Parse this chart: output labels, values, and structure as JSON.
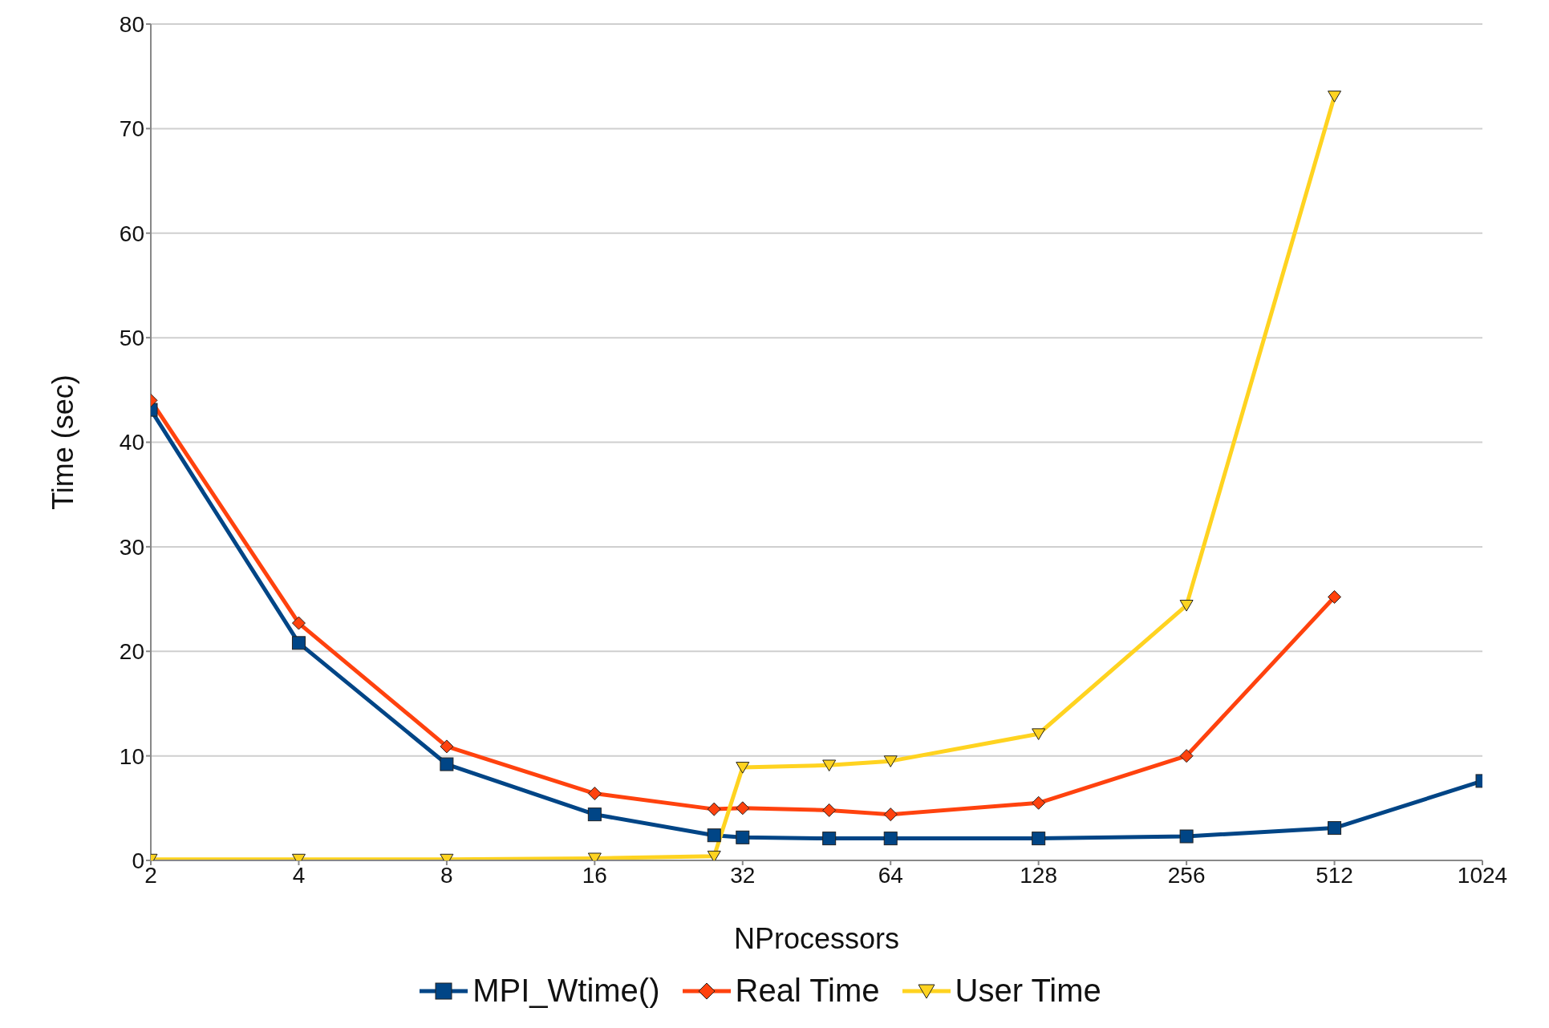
{
  "chart_data": {
    "type": "line",
    "xlabel": "NProcessors",
    "ylabel": "Time (sec)",
    "x": [
      2,
      4,
      8,
      16,
      28,
      32,
      48,
      64,
      128,
      256,
      512,
      1024
    ],
    "series": [
      {
        "name": "MPI_Wtime()",
        "color": "#004586",
        "marker": "square",
        "values": [
          43.1,
          20.8,
          9.2,
          4.4,
          2.4,
          2.2,
          2.1,
          2.1,
          2.1,
          2.3,
          3.1,
          7.6
        ]
      },
      {
        "name": "Real Time",
        "color": "#ff420e",
        "marker": "diamond",
        "values": [
          44.0,
          22.7,
          10.9,
          6.4,
          4.9,
          5.0,
          4.8,
          4.4,
          5.5,
          10.0,
          25.2,
          null
        ]
      },
      {
        "name": "User Time",
        "color": "#ffd320",
        "marker": "triangle",
        "values": [
          0.1,
          0.1,
          0.1,
          0.2,
          0.4,
          8.9,
          9.1,
          9.5,
          12.1,
          24.4,
          73.1,
          null
        ]
      }
    ],
    "log": "x",
    "xlim": [
      2,
      1024
    ],
    "xticks": [
      2,
      4,
      8,
      16,
      32,
      64,
      128,
      256,
      512,
      1024
    ],
    "ylim": [
      0,
      80
    ],
    "yticks": [
      0,
      10,
      20,
      30,
      40,
      50,
      60,
      70,
      80
    ],
    "grid": "y",
    "legend": "bottom",
    "line_style": "solid"
  }
}
